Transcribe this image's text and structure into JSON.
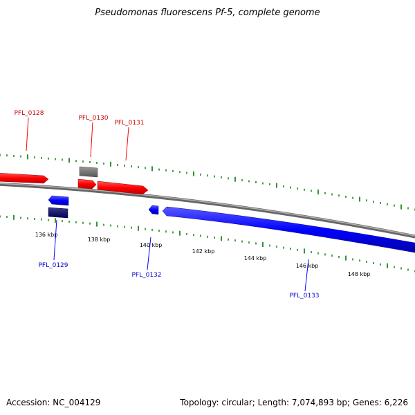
{
  "title": "Pseudomonas fluorescens Pf-5, complete genome",
  "footer": {
    "accession": "Accession: NC_004129",
    "summary": "Topology: circular; Length: 7,074,893 bp; Genes: 6,226"
  },
  "colors": {
    "forward_gene": "#ff0000",
    "reverse_gene": "#0000ff",
    "reverse_gene_dark": "#000066",
    "other_feature": "#707070",
    "backbone": "#808080",
    "tick": "#007700",
    "forward_label": "#cc0000",
    "reverse_label": "#0000cc"
  },
  "scale_labels": [
    "136 kbp",
    "138 kbp",
    "140 kbp",
    "142 kbp",
    "144 kbp",
    "146 kbp",
    "148 kbp"
  ],
  "gene_labels": {
    "forward": [
      "PFL_0128",
      "PFL_0130",
      "PFL_0131"
    ],
    "reverse": [
      "PFL_0129",
      "PFL_0132",
      "PFL_0133"
    ]
  }
}
